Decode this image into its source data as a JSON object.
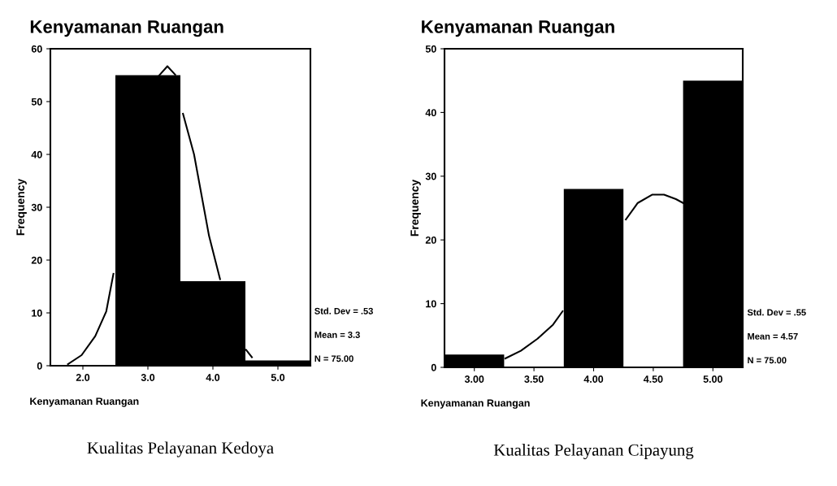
{
  "chart_data": [
    {
      "type": "histogram",
      "title": "Kenyamanan Ruangan",
      "xlabel": "Kenyamanan Ruangan",
      "ylabel": "Frequency",
      "bins": [
        1.5,
        2.5,
        3.5,
        4.5,
        5.5
      ],
      "values": [
        0,
        55,
        16,
        1
      ],
      "color": "#000000",
      "series": [
        {
          "type": "line",
          "color": "#000000",
          "x": [
            1.77,
            1.98,
            2.19,
            2.36,
            2.47,
            null,
            3.17,
            3.3,
            3.42,
            null,
            3.54,
            3.71,
            3.94,
            4.11,
            null,
            4.51,
            4.6
          ],
          "values": [
            0.3,
            2,
            5.6,
            10.3,
            17.4,
            null,
            54.9,
            56.7,
            55.1,
            null,
            47.7,
            40,
            24.6,
            16.4,
            null,
            3,
            1.6
          ]
        }
      ],
      "xlim": [
        1.5,
        5.5
      ],
      "xticks": [
        {
          "value": 2,
          "label": "2.0"
        },
        {
          "value": 3,
          "label": "3.0"
        },
        {
          "value": 4,
          "label": "4.0"
        },
        {
          "value": 5,
          "label": "5.0"
        }
      ],
      "ylim": [
        0,
        60
      ],
      "yticks": [
        0,
        10,
        20,
        30,
        40,
        50,
        60
      ],
      "grid": false,
      "legend": false,
      "annotations": [
        "Std. Dev = .53",
        "Mean = 3.3",
        "N = 75.00",
        "Kualitas Pelayanan Kedoya"
      ]
    },
    {
      "type": "histogram",
      "title": "Kenyamanan Ruangan",
      "xlabel": "Kenyamanan Ruangan",
      "ylabel": "Frequency",
      "bins": [
        2.75,
        3.25,
        3.75,
        4.25,
        4.75,
        5.25
      ],
      "values": [
        2,
        0,
        28,
        0,
        45
      ],
      "color": "#000000",
      "series": [
        {
          "type": "line",
          "color": "#000000",
          "x": [
            3.26,
            3.39,
            3.53,
            3.66,
            3.74,
            null,
            4.27,
            4.37,
            4.49,
            4.59,
            4.69,
            4.75
          ],
          "values": [
            1.4,
            2.6,
            4.5,
            6.7,
            8.8,
            null,
            23.2,
            25.8,
            27.1,
            27.1,
            26.4,
            25.8
          ]
        }
      ],
      "xlim": [
        2.75,
        5.25
      ],
      "xticks": [
        {
          "value": 3,
          "label": "3.00"
        },
        {
          "value": 3.5,
          "label": "3.50"
        },
        {
          "value": 4,
          "label": "4.00"
        },
        {
          "value": 4.5,
          "label": "4.50"
        },
        {
          "value": 5,
          "label": "5.00"
        }
      ],
      "ylim": [
        0,
        50
      ],
      "yticks": [
        0,
        10,
        20,
        30,
        40,
        50
      ],
      "grid": false,
      "legend": false,
      "annotations": [
        "Std. Dev = .55",
        "Mean = 4.57",
        "N = 75.00",
        "Kualitas Pelayanan Cipayung"
      ]
    }
  ]
}
